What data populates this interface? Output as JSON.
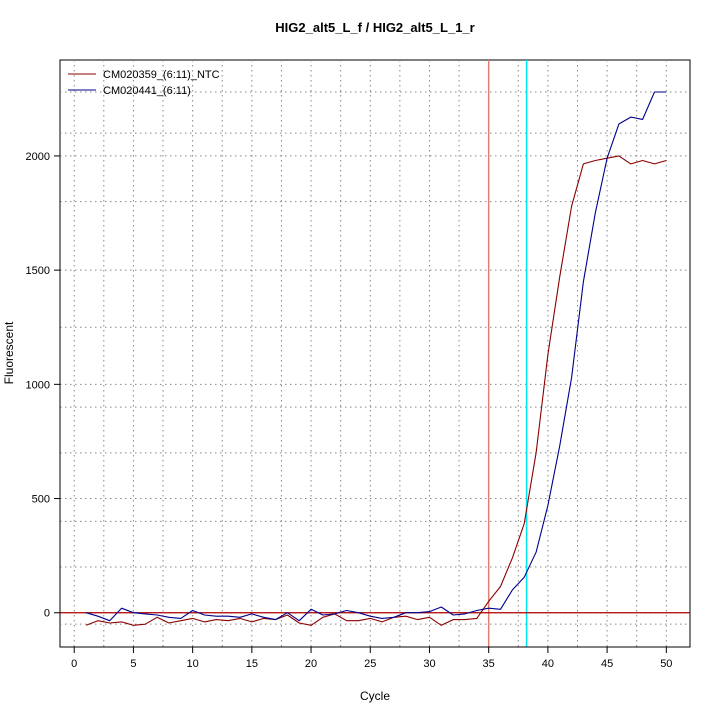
{
  "chart_data": {
    "type": "line",
    "title": "HIG2_alt5_L_f / HIG2_alt5_L_1_r",
    "xlabel": "Cycle",
    "ylabel": "Fluorescent",
    "xlim": [
      -1.2,
      52
    ],
    "ylim": [
      -150,
      2420
    ],
    "x_ticks": [
      0,
      5,
      10,
      15,
      20,
      25,
      30,
      35,
      40,
      45,
      50
    ],
    "y_ticks": [
      0,
      500,
      1000,
      1500,
      2000
    ],
    "x_grid": [
      2.5,
      7.5,
      12.5,
      17.5,
      22.5,
      27.5,
      32.5,
      37.5,
      42.5,
      47.5
    ],
    "y_grid": [
      -50,
      200,
      400,
      700,
      900,
      1250,
      1800,
      2100,
      2280
    ],
    "legend_position": "top-left",
    "series": [
      {
        "name": "CM020359_(6:11)_NTC",
        "color": "#8b0000",
        "x": [
          1,
          2,
          3,
          4,
          5,
          6,
          7,
          8,
          9,
          10,
          11,
          12,
          13,
          14,
          15,
          16,
          17,
          18,
          19,
          20,
          21,
          22,
          23,
          24,
          25,
          26,
          27,
          28,
          29,
          30,
          31,
          32,
          33,
          34,
          35,
          36,
          37,
          38,
          39,
          40,
          41,
          42,
          43,
          44,
          45,
          46,
          47,
          48,
          49,
          50
        ],
        "y": [
          -55,
          -35,
          -45,
          -40,
          -55,
          -50,
          -20,
          -45,
          -35,
          -25,
          -40,
          -30,
          -35,
          -25,
          -40,
          -25,
          -30,
          -10,
          -45,
          -55,
          -20,
          -5,
          -35,
          -35,
          -25,
          -40,
          -20,
          -15,
          -30,
          -20,
          -55,
          -30,
          -30,
          -25,
          50,
          115,
          240,
          390,
          700,
          1130,
          1470,
          1780,
          1965,
          1980,
          1990,
          2000,
          1965,
          1980,
          1965,
          1980
        ]
      },
      {
        "name": "CM020441_(6:11)",
        "color": "#00008b",
        "x": [
          1,
          2,
          3,
          4,
          5,
          6,
          7,
          8,
          9,
          10,
          11,
          12,
          13,
          14,
          15,
          16,
          17,
          18,
          19,
          20,
          21,
          22,
          23,
          24,
          25,
          26,
          27,
          28,
          29,
          30,
          31,
          32,
          33,
          34,
          35,
          36,
          37,
          38,
          39,
          40,
          41,
          42,
          43,
          44,
          45,
          46,
          47,
          48,
          49,
          50
        ],
        "y": [
          0,
          -15,
          -35,
          20,
          0,
          -5,
          -10,
          -20,
          -25,
          10,
          -10,
          -15,
          -15,
          -20,
          -5,
          -20,
          -30,
          0,
          -35,
          15,
          -10,
          -5,
          10,
          0,
          -15,
          -25,
          -20,
          0,
          0,
          5,
          25,
          -10,
          -5,
          10,
          20,
          15,
          100,
          155,
          265,
          470,
          730,
          1030,
          1450,
          1750,
          1990,
          2140,
          2170,
          2160,
          2280,
          2280
        ]
      }
    ],
    "threshold": {
      "value": 0,
      "color": "#b00000"
    },
    "vlines": [
      {
        "x": 35,
        "color": "#e08070"
      },
      {
        "x": 38.2,
        "color": "#00e5ee"
      }
    ]
  }
}
